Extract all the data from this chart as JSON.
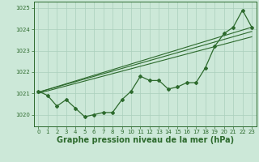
{
  "xlabel": "Graphe pression niveau de la mer (hPa)",
  "x": [
    0,
    1,
    2,
    3,
    4,
    5,
    6,
    7,
    8,
    9,
    10,
    11,
    12,
    13,
    14,
    15,
    16,
    17,
    18,
    19,
    20,
    21,
    22,
    23
  ],
  "y_main": [
    1021.1,
    1020.9,
    1020.4,
    1020.7,
    1020.3,
    1019.9,
    1020.0,
    1020.1,
    1020.1,
    1020.7,
    1021.1,
    1021.8,
    1021.6,
    1021.6,
    1021.2,
    1021.3,
    1021.5,
    1021.5,
    1022.2,
    1023.2,
    1023.8,
    1024.1,
    1024.9,
    1024.1
  ],
  "trend1_x": [
    0,
    23
  ],
  "trend1_y": [
    1021.05,
    1023.9
  ],
  "trend2_x": [
    0,
    23
  ],
  "trend2_y": [
    1021.0,
    1023.65
  ],
  "trend3_x": [
    0,
    23
  ],
  "trend3_y": [
    1021.05,
    1024.1
  ],
  "ylim": [
    1019.45,
    1025.3
  ],
  "xlim": [
    -0.5,
    23.5
  ],
  "yticks": [
    1020,
    1021,
    1022,
    1023,
    1024,
    1025
  ],
  "xticks": [
    0,
    1,
    2,
    3,
    4,
    5,
    6,
    7,
    8,
    9,
    10,
    11,
    12,
    13,
    14,
    15,
    16,
    17,
    18,
    19,
    20,
    21,
    22,
    23
  ],
  "line_color": "#2d6a2d",
  "bg_color": "#cce8d8",
  "grid_color": "#aacfbc",
  "tick_label_fontsize": 5.0,
  "xlabel_fontsize": 7.0,
  "marker": "D",
  "marker_size": 2.0
}
